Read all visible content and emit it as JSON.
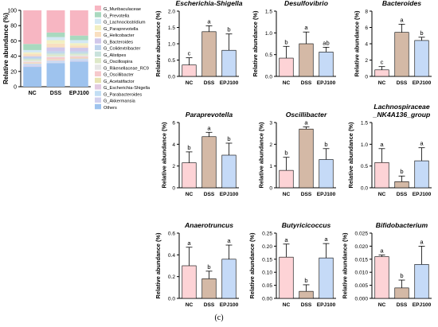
{
  "figure_label": "(c)",
  "colors": {
    "NC": "#FDD3D6",
    "DSS": "#D4B9A6",
    "EPJ100": "#C5DAF7",
    "axis": "#000000"
  },
  "chart_data": [
    {
      "type": "bar",
      "stacked": true,
      "title": "",
      "xlabel": "",
      "ylabel": "Relative abundance (%)",
      "categories": [
        "NC",
        "DSS",
        "EPJ100"
      ],
      "ylim": [
        0,
        100
      ],
      "yticks": [
        0,
        20,
        40,
        60,
        80,
        100
      ],
      "legend": "right",
      "series": [
        {
          "name": "Others",
          "color": "#9EC3EE",
          "values": [
            26,
            31,
            33
          ]
        },
        {
          "name": "G_Akkermansia",
          "color": "#D1D0EE",
          "values": [
            2,
            1,
            1.5
          ]
        },
        {
          "name": "G_Parabacteroides",
          "color": "#C2DEF4",
          "values": [
            1.5,
            1.5,
            1.5
          ]
        },
        {
          "name": "G_Escherichia-Shigella",
          "color": "#E2CBE2",
          "values": [
            1,
            1.5,
            1
          ]
        },
        {
          "name": "G_Acetatifactor",
          "color": "#E8E4B2",
          "values": [
            1,
            1,
            1
          ]
        },
        {
          "name": "G_Oscillibacter",
          "color": "#F6C9CC",
          "values": [
            1,
            2.5,
            1.5
          ]
        },
        {
          "name": "G_Rikenellaceae_RC9",
          "color": "#E6E6E6",
          "values": [
            1.5,
            1.5,
            1.5
          ]
        },
        {
          "name": "G_Oscillospira",
          "color": "#DDE8C8",
          "values": [
            1.5,
            2,
            1.5
          ]
        },
        {
          "name": "G_Alistipes",
          "color": "#C9E2DC",
          "values": [
            1.5,
            2,
            2
          ]
        },
        {
          "name": "G_Colidextribacter",
          "color": "#BED3EC",
          "values": [
            2,
            2.5,
            2
          ]
        },
        {
          "name": "G_Bacteroides",
          "color": "#D0C7EA",
          "values": [
            1,
            5,
            4.5
          ]
        },
        {
          "name": "G_Helicobacter",
          "color": "#F9DFC0",
          "values": [
            3,
            5,
            3
          ]
        },
        {
          "name": "G_Paraprevotella",
          "color": "#F2EFC2",
          "values": [
            2,
            4.5,
            3
          ]
        },
        {
          "name": "G_Lachnoclostridium",
          "color": "#D3E8F4",
          "values": [
            3,
            4,
            4
          ]
        },
        {
          "name": "G_Prevotella",
          "color": "#A9D9BF",
          "values": [
            8,
            6,
            6
          ]
        },
        {
          "name": "G_Muribaculaceae",
          "color": "#F7B6C2",
          "values": [
            44,
            29,
            33
          ]
        }
      ]
    },
    {
      "type": "bar",
      "title": "Escherichia-Shigella",
      "xlabel": "",
      "ylabel": "Relative abundance (%)",
      "categories": [
        "NC",
        "DSS",
        "EPJ100"
      ],
      "values": [
        0.35,
        1.37,
        0.8
      ],
      "errors": [
        0.22,
        0.18,
        0.5
      ],
      "letters": [
        "c",
        "a",
        "b"
      ],
      "ylim": [
        0,
        2.0
      ],
      "yticks": [
        0.0,
        0.5,
        1.0,
        1.5,
        2.0
      ],
      "ytick_labels": [
        "0.0",
        "0.5",
        "1.0",
        "1.5",
        "2.0"
      ]
    },
    {
      "type": "bar",
      "title": "Desulfovibrio",
      "xlabel": "",
      "ylabel": "Relative abundance (%)",
      "categories": [
        "NC",
        "DSS",
        "EPJ100"
      ],
      "values": [
        0.42,
        0.75,
        0.56
      ],
      "errors": [
        0.27,
        0.27,
        0.11
      ],
      "letters": [
        "b",
        "a",
        "ab"
      ],
      "ylim": [
        0,
        1.5
      ],
      "yticks": [
        0.0,
        0.5,
        1.0,
        1.5
      ],
      "ytick_labels": [
        "0.0",
        "0.5",
        "1.0",
        "1.5"
      ]
    },
    {
      "type": "bar",
      "title": "Bacteroides",
      "xlabel": "",
      "ylabel": "Relative abundance (%)",
      "categories": [
        "NC",
        "DSS",
        "EPJ100"
      ],
      "values": [
        0.8,
        5.4,
        4.4
      ],
      "errors": [
        0.4,
        1.0,
        0.4
      ],
      "letters": [
        "c",
        "a",
        "b"
      ],
      "ylim": [
        0,
        8
      ],
      "yticks": [
        0,
        2,
        4,
        6,
        8
      ],
      "ytick_labels": [
        "0",
        "2",
        "4",
        "6",
        "8"
      ]
    },
    {
      "type": "bar",
      "title": "Paraprevotella",
      "xlabel": "",
      "ylabel": "Relative abundance (%)",
      "categories": [
        "NC",
        "DSS",
        "EPJ100"
      ],
      "values": [
        2.3,
        4.7,
        3.0
      ],
      "errors": [
        1.0,
        0.4,
        1.1
      ],
      "letters": [
        "b",
        "a",
        "b"
      ],
      "ylim": [
        0,
        6
      ],
      "yticks": [
        0,
        2,
        4,
        6
      ],
      "ytick_labels": [
        "0",
        "2",
        "4",
        "6"
      ]
    },
    {
      "type": "bar",
      "title": "Oscillibacter",
      "xlabel": "",
      "ylabel": "Relative abundance (%)",
      "categories": [
        "NC",
        "DSS",
        "EPJ100"
      ],
      "values": [
        0.8,
        2.7,
        1.3
      ],
      "errors": [
        0.6,
        0.1,
        0.5
      ],
      "letters": [
        "b",
        "a",
        "b"
      ],
      "ylim": [
        0,
        3
      ],
      "yticks": [
        0,
        1,
        2,
        3
      ],
      "ytick_labels": [
        "0",
        "1",
        "2",
        "3"
      ]
    },
    {
      "type": "bar",
      "title": "Lachnospiraceae _NK4A136_group",
      "xlabel": "",
      "ylabel": "Relative abundance (%)",
      "categories": [
        "NC",
        "DSS",
        "EPJ100"
      ],
      "values": [
        0.58,
        0.14,
        0.62
      ],
      "errors": [
        0.32,
        0.13,
        0.3
      ],
      "letters": [
        "a",
        "b",
        "a"
      ],
      "ylim": [
        0,
        1.5
      ],
      "yticks": [
        0.0,
        0.5,
        1.0,
        1.5
      ],
      "ytick_labels": [
        "0.0",
        "0.5",
        "1.0",
        "1.5"
      ]
    },
    {
      "type": "bar",
      "title": "Anaerotruncus",
      "xlabel": "",
      "ylabel": "Relative abundance (%)",
      "categories": [
        "NC",
        "DSS",
        "EPJ100"
      ],
      "values": [
        0.3,
        0.18,
        0.36
      ],
      "errors": [
        0.17,
        0.07,
        0.13
      ],
      "letters": [
        "a",
        "b",
        "a"
      ],
      "ylim": [
        0,
        0.6
      ],
      "yticks": [
        0.0,
        0.2,
        0.4,
        0.6
      ],
      "ytick_labels": [
        "0.0",
        "0.2",
        "0.4",
        "0.6"
      ]
    },
    {
      "type": "bar",
      "title": "Butyricicoccus",
      "xlabel": "",
      "ylabel": "Relative abundance (%)",
      "categories": [
        "NC",
        "DSS",
        "EPJ100"
      ],
      "values": [
        0.158,
        0.027,
        0.155
      ],
      "errors": [
        0.05,
        0.025,
        0.055
      ],
      "letters": [
        "a",
        "b",
        "a"
      ],
      "ylim": [
        0,
        0.25
      ],
      "yticks": [
        0.0,
        0.05,
        0.1,
        0.15,
        0.2,
        0.25
      ],
      "ytick_labels": [
        "0.00",
        "0.05",
        "0.10",
        "0.15",
        "0.20",
        "0.25"
      ]
    },
    {
      "type": "bar",
      "title": "Bifidobacterium",
      "xlabel": "",
      "ylabel": "Relative abundance (%)",
      "categories": [
        "NC",
        "DSS",
        "EPJ100"
      ],
      "values": [
        0.016,
        0.004,
        0.013
      ],
      "errors": [
        0.0006,
        0.003,
        0.007
      ],
      "letters": [
        "a",
        "b",
        "a"
      ],
      "ylim": [
        0,
        0.025
      ],
      "yticks": [
        0.0,
        0.005,
        0.01,
        0.015,
        0.02,
        0.025
      ],
      "ytick_labels": [
        "0.000",
        "0.005",
        "0.010",
        "0.015",
        "0.020",
        "0.025"
      ]
    }
  ]
}
